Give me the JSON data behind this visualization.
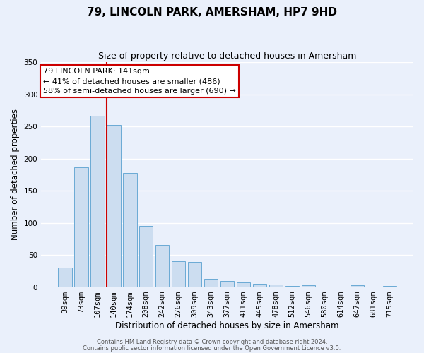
{
  "title": "79, LINCOLN PARK, AMERSHAM, HP7 9HD",
  "subtitle": "Size of property relative to detached houses in Amersham",
  "xlabel": "Distribution of detached houses by size in Amersham",
  "ylabel": "Number of detached properties",
  "categories": [
    "39sqm",
    "73sqm",
    "107sqm",
    "140sqm",
    "174sqm",
    "208sqm",
    "242sqm",
    "276sqm",
    "309sqm",
    "343sqm",
    "377sqm",
    "411sqm",
    "445sqm",
    "478sqm",
    "512sqm",
    "546sqm",
    "580sqm",
    "614sqm",
    "647sqm",
    "681sqm",
    "715sqm"
  ],
  "values": [
    30,
    186,
    267,
    252,
    178,
    95,
    65,
    40,
    39,
    13,
    9,
    7,
    5,
    4,
    2,
    3,
    1,
    0,
    3,
    0,
    2
  ],
  "bar_color": "#ccddf0",
  "bar_edge_color": "#6aaad4",
  "red_line_x": 2.575,
  "annotation_line1": "79 LINCOLN PARK: 141sqm",
  "annotation_line2": "← 41% of detached houses are smaller (486)",
  "annotation_line3": "58% of semi-detached houses are larger (690) →",
  "annotation_box_facecolor": "#ffffff",
  "annotation_box_edgecolor": "#cc0000",
  "ylim_max": 350,
  "yticks": [
    0,
    50,
    100,
    150,
    200,
    250,
    300,
    350
  ],
  "footer_line1": "Contains HM Land Registry data © Crown copyright and database right 2024.",
  "footer_line2": "Contains public sector information licensed under the Open Government Licence v3.0.",
  "bg_color": "#eaf0fb",
  "grid_color": "#ffffff",
  "title_fontsize": 11,
  "subtitle_fontsize": 9,
  "axis_label_fontsize": 8.5,
  "tick_fontsize": 7.5,
  "annot_fontsize": 8,
  "footer_fontsize": 6
}
